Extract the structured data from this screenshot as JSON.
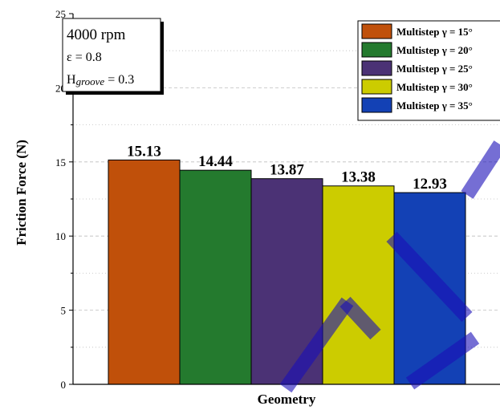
{
  "chart_data": {
    "type": "bar",
    "xlabel": "Geometry",
    "ylabel": "Friction Force (N)",
    "ylim": [
      0,
      25
    ],
    "yticks": [
      0,
      5,
      10,
      15,
      20,
      25
    ],
    "grid": true,
    "legend_position": "top-right",
    "conditions": {
      "speed": "4000 rpm",
      "eccentricity": "ε = 0.8",
      "groove_prefix": "H",
      "groove_sub": "groove",
      "groove_value": " = 0.3"
    },
    "series": [
      {
        "name": "Multistep γ = 15°",
        "value": 15.13,
        "label": "15.13",
        "color": "#C0500A"
      },
      {
        "name": "Multistep γ = 20°",
        "value": 14.44,
        "label": "14.44",
        "color": "#247A2E"
      },
      {
        "name": "Multistep γ = 25°",
        "value": 13.87,
        "label": "13.87",
        "color": "#4B3275"
      },
      {
        "name": "Multistep γ = 30°",
        "value": 13.38,
        "label": "13.38",
        "color": "#CCCC00"
      },
      {
        "name": "Multistep γ = 35°",
        "value": 12.93,
        "label": "12.93",
        "color": "#1341B5"
      }
    ],
    "watermark_color": "#1a0fb8"
  }
}
